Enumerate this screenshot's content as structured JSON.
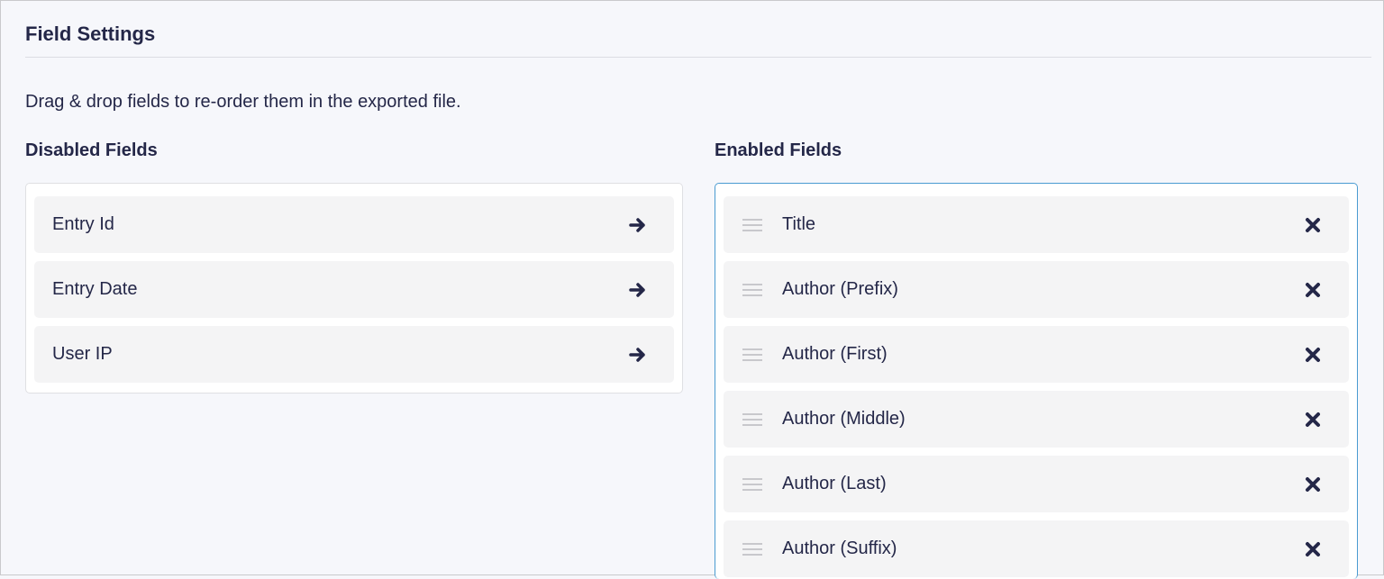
{
  "section_title": "Field Settings",
  "description": "Drag & drop fields to re-order them in the exported file.",
  "disabled": {
    "heading": "Disabled Fields",
    "items": [
      {
        "label": "Entry Id"
      },
      {
        "label": "Entry Date"
      },
      {
        "label": "User IP"
      }
    ]
  },
  "enabled": {
    "heading": "Enabled Fields",
    "items": [
      {
        "label": "Title"
      },
      {
        "label": "Author (Prefix)"
      },
      {
        "label": "Author (First)"
      },
      {
        "label": "Author (Middle)"
      },
      {
        "label": "Author (Last)"
      },
      {
        "label": "Author (Suffix)"
      }
    ]
  },
  "colors": {
    "text": "#242748",
    "accent_border": "#4a9bd1",
    "background": "#f6f7fb"
  }
}
